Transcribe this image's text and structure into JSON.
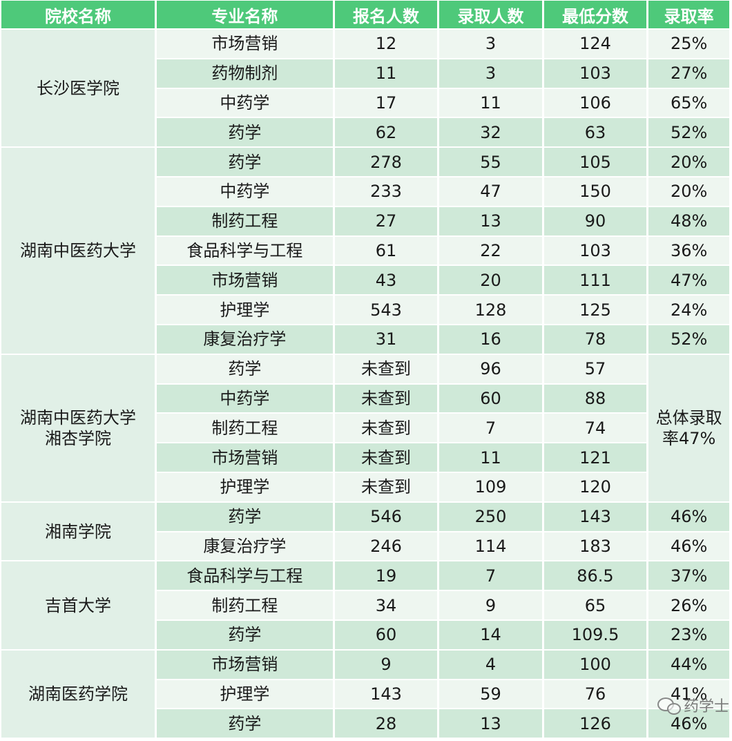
{
  "headers": [
    "院校名称",
    "专业名称",
    "报名人数",
    "录取人数",
    "最低分数",
    "录取率"
  ],
  "schools": [
    {
      "name": "长沙医学院",
      "rows": [
        {
          "major": "市场营销",
          "applicants": "12",
          "admitted": "3",
          "min_score": "124",
          "rate": "25%"
        },
        {
          "major": "药物制剂",
          "applicants": "11",
          "admitted": "3",
          "min_score": "103",
          "rate": "27%"
        },
        {
          "major": "中药学",
          "applicants": "17",
          "admitted": "11",
          "min_score": "106",
          "rate": "65%"
        },
        {
          "major": "药学",
          "applicants": "62",
          "admitted": "32",
          "min_score": "63",
          "rate": "52%"
        }
      ]
    },
    {
      "name": "湖南中医药大学",
      "rows": [
        {
          "major": "药学",
          "applicants": "278",
          "admitted": "55",
          "min_score": "105",
          "rate": "20%"
        },
        {
          "major": "中药学",
          "applicants": "233",
          "admitted": "47",
          "min_score": "150",
          "rate": "20%"
        },
        {
          "major": "制药工程",
          "applicants": "27",
          "admitted": "13",
          "min_score": "90",
          "rate": "48%"
        },
        {
          "major": "食品科学与工程",
          "applicants": "61",
          "admitted": "22",
          "min_score": "103",
          "rate": "36%"
        },
        {
          "major": "市场营销",
          "applicants": "43",
          "admitted": "20",
          "min_score": "111",
          "rate": "47%"
        },
        {
          "major": "护理学",
          "applicants": "543",
          "admitted": "128",
          "min_score": "125",
          "rate": "24%"
        },
        {
          "major": "康复治疗学",
          "applicants": "31",
          "admitted": "16",
          "min_score": "78",
          "rate": "52%"
        }
      ]
    },
    {
      "name_line1": "湖南中医药大学",
      "name_line2": "湘杏学院",
      "rate_note_line1": "总体录取",
      "rate_note_line2": "率47%",
      "rows": [
        {
          "major": "药学",
          "applicants": "未查到",
          "admitted": "96",
          "min_score": "57"
        },
        {
          "major": "中药学",
          "applicants": "未查到",
          "admitted": "60",
          "min_score": "88"
        },
        {
          "major": "制药工程",
          "applicants": "未查到",
          "admitted": "7",
          "min_score": "74"
        },
        {
          "major": "市场营销",
          "applicants": "未查到",
          "admitted": "11",
          "min_score": "121"
        },
        {
          "major": "护理学",
          "applicants": "未查到",
          "admitted": "109",
          "min_score": "120"
        }
      ]
    },
    {
      "name": "湘南学院",
      "rows": [
        {
          "major": "药学",
          "applicants": "546",
          "admitted": "250",
          "min_score": "143",
          "rate": "46%"
        },
        {
          "major": "康复治疗学",
          "applicants": "246",
          "admitted": "114",
          "min_score": "183",
          "rate": "46%"
        }
      ]
    },
    {
      "name": "吉首大学",
      "rows": [
        {
          "major": "食品科学与工程",
          "applicants": "19",
          "admitted": "7",
          "min_score": "86.5",
          "rate": "37%"
        },
        {
          "major": "制药工程",
          "applicants": "34",
          "admitted": "9",
          "min_score": "65",
          "rate": "26%"
        },
        {
          "major": "药学",
          "applicants": "60",
          "admitted": "14",
          "min_score": "109.5",
          "rate": "23%"
        }
      ]
    },
    {
      "name": "湖南医药学院",
      "rows": [
        {
          "major": "市场营销",
          "applicants": "9",
          "admitted": "4",
          "min_score": "100",
          "rate": "44%"
        },
        {
          "major": "护理学",
          "applicants": "143",
          "admitted": "59",
          "min_score": "76",
          "rate": "41%"
        },
        {
          "major": "药学",
          "applicants": "28",
          "admitted": "13",
          "min_score": "126",
          "rate": "46%"
        }
      ]
    }
  ],
  "watermark": {
    "text": "药学士",
    "icon": "wechat-icon"
  },
  "colors": {
    "header": "#4ec97a",
    "row_light": "#eef6f0",
    "row_dark": "#cfe9d8",
    "school_cell": "#e1f0e7"
  }
}
